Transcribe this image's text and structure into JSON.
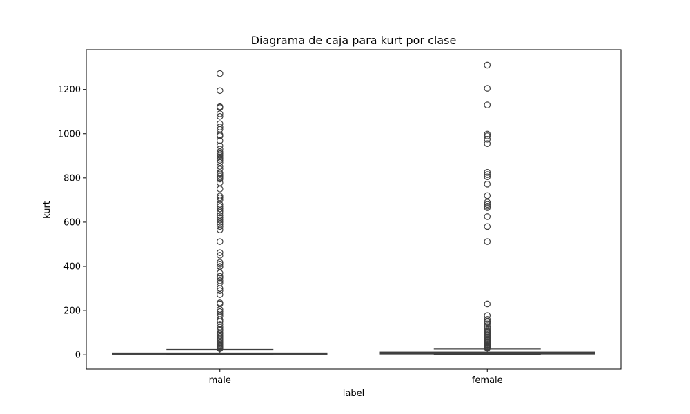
{
  "chart_data": {
    "type": "box",
    "title": "Diagrama de caja para kurt por clase",
    "xlabel": "label",
    "ylabel": "kurt",
    "ylim": [
      -65,
      1380
    ],
    "yticks": [
      0,
      200,
      400,
      600,
      800,
      1000,
      1200
    ],
    "categories": [
      "male",
      "female"
    ],
    "box_colors": [
      "#5b7fa6",
      "#dd8452"
    ],
    "line_color": "#3f3f3f",
    "series": [
      {
        "name": "male",
        "q1": 3,
        "median": 6,
        "q3": 8,
        "whisker_low": 1,
        "whisker_high": 24,
        "outliers": [
          1272,
          1195,
          1122,
          1118,
          1090,
          1078,
          1045,
          1030,
          1020,
          995,
          990,
          968,
          945,
          930,
          918,
          910,
          902,
          895,
          888,
          880,
          870,
          852,
          840,
          822,
          815,
          808,
          800,
          795,
          778,
          750,
          718,
          710,
          700,
          680,
          670,
          660,
          650,
          642,
          630,
          620,
          610,
          600,
          590,
          580,
          565,
          512,
          462,
          450,
          418,
          410,
          400,
          398,
          370,
          355,
          348,
          335,
          325,
          300,
          290,
          272,
          235,
          230,
          205,
          195,
          185,
          175,
          158,
          150,
          138,
          125,
          115,
          110,
          100,
          95,
          88,
          82,
          75,
          68,
          62,
          55,
          50,
          45,
          40,
          36,
          32,
          28
        ]
      },
      {
        "name": "female",
        "q1": 4,
        "median": 9,
        "q3": 12,
        "whisker_low": 1,
        "whisker_high": 26,
        "outliers": [
          1310,
          1205,
          1130,
          998,
          990,
          975,
          955,
          825,
          815,
          805,
          772,
          720,
          690,
          680,
          672,
          665,
          625,
          580,
          512,
          230,
          178,
          160,
          152,
          148,
          140,
          128,
          120,
          112,
          105,
          100,
          95,
          90,
          85,
          80,
          75,
          70,
          65,
          60,
          55,
          50,
          46,
          42,
          38,
          35,
          32,
          30
        ]
      }
    ]
  }
}
